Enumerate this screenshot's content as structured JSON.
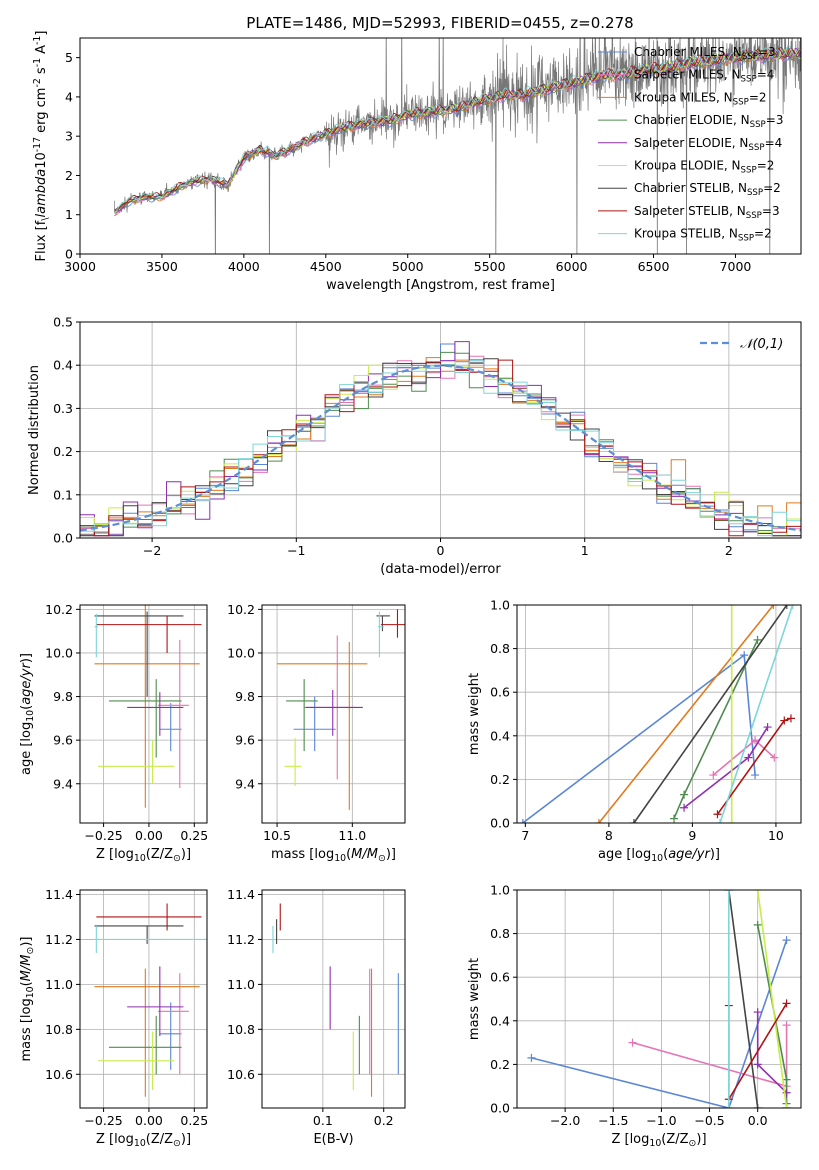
{
  "figure_title": "PLATE=1486, MJD=52993, FIBERID=0455, z=0.278",
  "colors": {
    "Chabrier MILES": "#5b86d6",
    "Salpeter MILES": "#e573b6",
    "Kroupa MILES": "#e07a1e",
    "Chabrier ELODIE": "#4f8c4f",
    "Salpeter ELODIE": "#8e2fb0",
    "Kroupa ELODIE": "#c8ec4a",
    "Chabrier STELIB": "#444444",
    "Salpeter STELIB": "#b01313",
    "Kroupa STELIB": "#7fd5d8",
    "data": "#777777",
    "gaussian": "#5b8fd6"
  },
  "chart_data": [
    {
      "id": "spectrum",
      "type": "line",
      "xlabel": "wavelength [Angstrom, rest frame]",
      "ylabel": "Flux [f$_\\lambda$10$^{-17}$ erg cm$^{-2}$ s$^{-1}$ A$^{-1}$]",
      "xlim": [
        3000,
        7400
      ],
      "ylim": [
        0,
        5.5
      ],
      "xticks": [
        3000,
        3500,
        4000,
        4500,
        5000,
        5500,
        6000,
        6500,
        7000
      ],
      "yticks": [
        0,
        1,
        2,
        3,
        4,
        5
      ],
      "legend_position": "top-right",
      "legend": [
        "Chabrier MILES, N$_{SSP}$=3",
        "Salpeter MILES, N$_{SSP}$=4",
        "Kroupa MILES, N$_{SSP}$=2",
        "Chabrier ELODIE, N$_{SSP}$=3",
        "Salpeter ELODIE, N$_{SSP}$=4",
        "Kroupa ELODIE, N$_{SSP}$=2",
        "Chabrier STELIB, N$_{SSP}$=2",
        "Salpeter STELIB, N$_{SSP}$=3",
        "Kroupa STELIB, N$_{SSP}$=2"
      ],
      "continuum": {
        "x": [
          3210,
          3300,
          3400,
          3500,
          3600,
          3700,
          3800,
          3900,
          4000,
          4100,
          4200,
          4300,
          4400,
          4500,
          4600,
          4700,
          4800,
          4900,
          5000,
          5100,
          5200,
          5300,
          5400,
          5500,
          5600,
          5700,
          5800,
          5900,
          6000,
          6100,
          6200,
          6300,
          6400,
          6500,
          6600,
          6700,
          6800,
          6900,
          7000,
          7100,
          7200,
          7300,
          7400
        ],
        "y": [
          1.05,
          1.35,
          1.45,
          1.45,
          1.7,
          1.85,
          1.9,
          1.75,
          2.45,
          2.65,
          2.5,
          2.7,
          2.9,
          3.05,
          3.2,
          3.3,
          3.35,
          3.4,
          3.55,
          3.6,
          3.65,
          3.7,
          3.85,
          3.95,
          4.05,
          4.05,
          4.15,
          4.25,
          4.35,
          4.45,
          4.55,
          4.55,
          4.65,
          4.7,
          4.75,
          4.85,
          4.9,
          4.95,
          5.0,
          5.05,
          5.05,
          5.1,
          5.1
        ]
      }
    },
    {
      "id": "residuals",
      "type": "line",
      "xlabel": "(data-model)/error",
      "ylabel": "Normed distribution",
      "xlim": [
        -2.5,
        2.5
      ],
      "ylim": [
        0,
        0.5
      ],
      "xticks": [
        -2,
        -1,
        0,
        1,
        2
      ],
      "yticks": [
        0.0,
        0.1,
        0.2,
        0.3,
        0.4,
        0.5
      ],
      "grid": true,
      "legend": [
        "$\\mathcal{N}(0,1)$"
      ],
      "legend_position": "top-right",
      "gaussian": {
        "mean": 0,
        "sigma": 1
      }
    },
    {
      "id": "age_vs_Z",
      "type": "scatter",
      "xlabel": "Z [log$_{10}$(Z/Z$_\\odot$)]",
      "ylabel": "age  [log$_{10}$($age/yr$)]",
      "xlim": [
        -0.38,
        0.32
      ],
      "ylim": [
        9.22,
        10.22
      ],
      "xticks": [
        -0.25,
        0.0,
        0.25
      ],
      "xticklabels": [
        "−0.25",
        "0.00",
        "0.25"
      ],
      "yticks": [
        9.4,
        9.6,
        9.8,
        10.0,
        10.2
      ],
      "grid": true,
      "points": [
        {
          "model": "Chabrier MILES",
          "x": 0.12,
          "y": 9.65,
          "xerr": [
            0.06,
            0.06
          ],
          "yerr": [
            0.1,
            0.12
          ]
        },
        {
          "model": "Salpeter MILES",
          "x": 0.17,
          "y": 9.76,
          "xerr": [
            0.12,
            0.05
          ],
          "yerr": [
            0.38,
            0.3
          ]
        },
        {
          "model": "Kroupa MILES",
          "x": -0.02,
          "y": 9.95,
          "xerr": [
            0.28,
            0.3
          ],
          "yerr": [
            0.66,
            0.3
          ]
        },
        {
          "model": "Chabrier ELODIE",
          "x": 0.04,
          "y": 9.78,
          "xerr": [
            0.26,
            0.14
          ],
          "yerr": [
            0.26,
            0.1
          ]
        },
        {
          "model": "Salpeter ELODIE",
          "x": 0.06,
          "y": 9.75,
          "xerr": [
            0.18,
            0.13
          ],
          "yerr": [
            0.13,
            0.07
          ]
        },
        {
          "model": "Kroupa ELODIE",
          "x": 0.02,
          "y": 9.48,
          "xerr": [
            0.3,
            0.12
          ],
          "yerr": [
            0.08,
            0.12
          ]
        },
        {
          "model": "Chabrier STELIB",
          "x": -0.01,
          "y": 10.17,
          "xerr": [
            0.29,
            0.2
          ],
          "yerr": [
            0.37,
            0.02
          ]
        },
        {
          "model": "Salpeter STELIB",
          "x": 0.1,
          "y": 10.13,
          "xerr": [
            0.39,
            0.19
          ],
          "yerr": [
            0.13,
            0.04
          ]
        },
        {
          "model": "Kroupa STELIB",
          "x": -0.29,
          "y": 10.12,
          "xerr": [
            0.01,
            0.01
          ],
          "yerr": [
            0.14,
            0.06
          ]
        }
      ]
    },
    {
      "id": "age_vs_mass",
      "type": "scatter",
      "xlabel": "mass [log$_{10}$($M/M_\\odot$)]",
      "ylabel": "",
      "xlim": [
        10.4,
        11.35
      ],
      "ylim": [
        9.22,
        10.22
      ],
      "xticks": [
        10.5,
        11.0
      ],
      "yticks": [
        9.4,
        9.6,
        9.8,
        10.0,
        10.2
      ],
      "grid": true,
      "points": [
        {
          "model": "Chabrier MILES",
          "x": 10.75,
          "y": 9.65,
          "xerr": [
            0.14,
            0.14
          ],
          "yerr": [
            0.1,
            0.15
          ]
        },
        {
          "model": "Salpeter MILES",
          "x": 10.9,
          "y": 9.75,
          "xerr": [
            0.22,
            0.12
          ],
          "yerr": [
            0.33,
            0.33
          ]
        },
        {
          "model": "Kroupa MILES",
          "x": 10.98,
          "y": 9.95,
          "xerr": [
            0.48,
            0.12
          ],
          "yerr": [
            0.67,
            0.1
          ]
        },
        {
          "model": "Chabrier ELODIE",
          "x": 10.68,
          "y": 9.78,
          "xerr": [
            0.12,
            0.09
          ],
          "yerr": [
            0.23,
            0.1
          ]
        },
        {
          "model": "Salpeter ELODIE",
          "x": 10.87,
          "y": 9.75,
          "xerr": [
            0.18,
            0.2
          ],
          "yerr": [
            0.13,
            0.08
          ]
        },
        {
          "model": "Kroupa ELODIE",
          "x": 10.62,
          "y": 9.48,
          "xerr": [
            0.07,
            0.04
          ],
          "yerr": [
            0.09,
            0.13
          ]
        },
        {
          "model": "Chabrier STELIB",
          "x": 11.2,
          "y": 10.17,
          "xerr": [
            0.04,
            0.05
          ],
          "yerr": [
            0.07,
            0.0
          ]
        },
        {
          "model": "Salpeter STELIB",
          "x": 11.3,
          "y": 10.13,
          "xerr": [
            0.11,
            0.07
          ],
          "yerr": [
            0.06,
            0.07
          ]
        },
        {
          "model": "Kroupa STELIB",
          "x": 11.18,
          "y": 10.12,
          "xerr": [
            0.01,
            0.03
          ],
          "yerr": [
            0.14,
            0.07
          ]
        }
      ]
    },
    {
      "id": "mass_weight_vs_age",
      "type": "line",
      "xlabel": "age  [log$_{10}$($age/yr$)]",
      "ylabel": "mass weight",
      "xlim": [
        6.9,
        10.3
      ],
      "ylim": [
        0,
        1
      ],
      "xticks": [
        7,
        8,
        9,
        10
      ],
      "yticks": [
        0.0,
        0.2,
        0.4,
        0.6,
        0.8,
        1.0
      ],
      "grid": true,
      "series": [
        {
          "model": "Chabrier MILES",
          "x": [
            6.97,
            9.62,
            9.75
          ],
          "y": [
            0.0,
            0.77,
            0.22
          ]
        },
        {
          "model": "Salpeter MILES",
          "x": [
            9.25,
            9.75,
            9.98
          ],
          "y": [
            0.22,
            0.38,
            0.3
          ]
        },
        {
          "model": "Kroupa MILES",
          "x": [
            7.88,
            9.97
          ],
          "y": [
            0.0,
            1.0
          ]
        },
        {
          "model": "Chabrier ELODIE",
          "x": [
            8.78,
            8.9,
            9.78
          ],
          "y": [
            0.02,
            0.13,
            0.84
          ]
        },
        {
          "model": "Salpeter ELODIE",
          "x": [
            8.9,
            9.67,
            9.9
          ],
          "y": [
            0.07,
            0.3,
            0.44
          ]
        },
        {
          "model": "Kroupa ELODIE",
          "x": [
            9.47,
            9.47
          ],
          "y": [
            0.0,
            1.0
          ]
        },
        {
          "model": "Chabrier STELIB",
          "x": [
            8.3,
            10.13
          ],
          "y": [
            0.0,
            1.0
          ]
        },
        {
          "model": "Salpeter STELIB",
          "x": [
            9.3,
            10.1,
            10.18
          ],
          "y": [
            0.04,
            0.47,
            0.48
          ]
        },
        {
          "model": "Kroupa STELIB",
          "x": [
            9.33,
            10.2
          ],
          "y": [
            0.0,
            1.0
          ]
        }
      ]
    },
    {
      "id": "mass_vs_Z",
      "type": "scatter",
      "xlabel": "Z [log$_{10}$(Z/Z$_\\odot$)]",
      "ylabel": "mass [log$_{10}$($M/M_\\odot$)]",
      "xlim": [
        -0.38,
        0.32
      ],
      "ylim": [
        10.45,
        11.42
      ],
      "xticks": [
        -0.25,
        0.0,
        0.25
      ],
      "xticklabels": [
        "−0.25",
        "0.00",
        "0.25"
      ],
      "yticks": [
        10.6,
        10.8,
        11.0,
        11.2,
        11.4
      ],
      "grid": true,
      "points": [
        {
          "model": "Chabrier MILES",
          "x": 0.12,
          "y": 10.78,
          "xerr": [
            0.06,
            0.06
          ],
          "yerr": [
            0.16,
            0.14
          ]
        },
        {
          "model": "Salpeter MILES",
          "x": 0.17,
          "y": 10.88,
          "xerr": [
            0.12,
            0.05
          ],
          "yerr": [
            0.28,
            0.17
          ]
        },
        {
          "model": "Kroupa MILES",
          "x": -0.02,
          "y": 10.99,
          "xerr": [
            0.28,
            0.3
          ],
          "yerr": [
            0.49,
            0.08
          ]
        },
        {
          "model": "Chabrier ELODIE",
          "x": 0.04,
          "y": 10.72,
          "xerr": [
            0.26,
            0.14
          ],
          "yerr": [
            0.12,
            0.14
          ]
        },
        {
          "model": "Salpeter ELODIE",
          "x": 0.06,
          "y": 10.9,
          "xerr": [
            0.18,
            0.13
          ],
          "yerr": [
            0.13,
            0.18
          ]
        },
        {
          "model": "Kroupa ELODIE",
          "x": 0.02,
          "y": 10.66,
          "xerr": [
            0.3,
            0.12
          ],
          "yerr": [
            0.13,
            0.13
          ]
        },
        {
          "model": "Chabrier STELIB",
          "x": -0.01,
          "y": 11.26,
          "xerr": [
            0.29,
            0.2
          ],
          "yerr": [
            0.08,
            0.0
          ]
        },
        {
          "model": "Salpeter STELIB",
          "x": 0.1,
          "y": 11.3,
          "xerr": [
            0.39,
            0.19
          ],
          "yerr": [
            0.06,
            0.06
          ]
        },
        {
          "model": "Kroupa STELIB",
          "x": -0.29,
          "y": 11.2,
          "xerr": [
            0.01,
            0.62
          ],
          "yerr": [
            0.06,
            0.06
          ]
        }
      ]
    },
    {
      "id": "mass_vs_ebv",
      "type": "scatter",
      "xlabel": "E(B-V)",
      "ylabel": "",
      "xlim": [
        0.0,
        0.235
      ],
      "ylim": [
        10.45,
        11.42
      ],
      "xticks": [
        0.1,
        0.2
      ],
      "yticks": [
        10.6,
        10.8,
        11.0,
        11.2,
        11.4
      ],
      "grid": true,
      "points": [
        {
          "model": "Chabrier MILES",
          "x": 0.224,
          "y": 10.78,
          "yerr": [
            0.18,
            0.27
          ]
        },
        {
          "model": "Salpeter MILES",
          "x": 0.177,
          "y": 10.88,
          "yerr": [
            0.28,
            0.19
          ]
        },
        {
          "model": "Kroupa MILES",
          "x": 0.18,
          "y": 10.99,
          "yerr": [
            0.49,
            0.08
          ]
        },
        {
          "model": "Chabrier ELODIE",
          "x": 0.16,
          "y": 10.72,
          "yerr": [
            0.12,
            0.14
          ]
        },
        {
          "model": "Salpeter ELODIE",
          "x": 0.112,
          "y": 10.9,
          "yerr": [
            0.1,
            0.18
          ]
        },
        {
          "model": "Kroupa ELODIE",
          "x": 0.15,
          "y": 10.66,
          "yerr": [
            0.13,
            0.13
          ]
        },
        {
          "model": "Chabrier STELIB",
          "x": 0.024,
          "y": 11.26,
          "yerr": [
            0.08,
            0.03
          ]
        },
        {
          "model": "Salpeter STELIB",
          "x": 0.03,
          "y": 11.3,
          "yerr": [
            0.06,
            0.06
          ]
        },
        {
          "model": "Kroupa STELIB",
          "x": 0.018,
          "y": 11.2,
          "yerr": [
            0.06,
            0.06
          ]
        }
      ]
    },
    {
      "id": "mass_weight_vs_Z",
      "type": "line",
      "xlabel": "Z [log$_{10}$(Z/Z$_\\odot$)]",
      "ylabel": "mass weight",
      "xlim": [
        -2.5,
        0.45
      ],
      "ylim": [
        0,
        1
      ],
      "xticks": [
        -2.0,
        -1.5,
        -1.0,
        -0.5,
        0.0
      ],
      "xticklabels": [
        "−2.0",
        "−1.5",
        "−1.0",
        "−0.5",
        "0.0"
      ],
      "yticks": [
        0.0,
        0.2,
        0.4,
        0.6,
        0.8,
        1.0
      ],
      "grid": true,
      "series": [
        {
          "model": "Chabrier MILES",
          "x": [
            -2.35,
            -0.3,
            0.3
          ],
          "y": [
            0.23,
            0.0,
            0.77
          ]
        },
        {
          "model": "Salpeter MILES",
          "x": [
            -1.3,
            0.3,
            0.3
          ],
          "y": [
            0.3,
            0.1,
            0.38
          ]
        },
        {
          "model": "Kroupa MILES",
          "x": [
            0.3,
            0.3
          ],
          "y": [
            0.0,
            0.0
          ]
        },
        {
          "model": "Chabrier ELODIE",
          "x": [
            0.0,
            0.3,
            0.3
          ],
          "y": [
            0.84,
            0.13,
            0.02
          ]
        },
        {
          "model": "Salpeter ELODIE",
          "x": [
            0.0,
            0.0,
            0.3
          ],
          "y": [
            0.44,
            0.2,
            0.07
          ]
        },
        {
          "model": "Kroupa ELODIE",
          "x": [
            0.0,
            0.3
          ],
          "y": [
            1.0,
            0.0
          ]
        },
        {
          "model": "Chabrier STELIB",
          "x": [
            -0.3,
            0.0
          ],
          "y": [
            1.0,
            0.0
          ]
        },
        {
          "model": "Salpeter STELIB",
          "x": [
            -0.3,
            -0.3,
            0.3
          ],
          "y": [
            0.47,
            0.04,
            0.48
          ]
        },
        {
          "model": "Kroupa STELIB",
          "x": [
            -0.3,
            -0.3
          ],
          "y": [
            0.0,
            1.0
          ]
        }
      ]
    }
  ]
}
